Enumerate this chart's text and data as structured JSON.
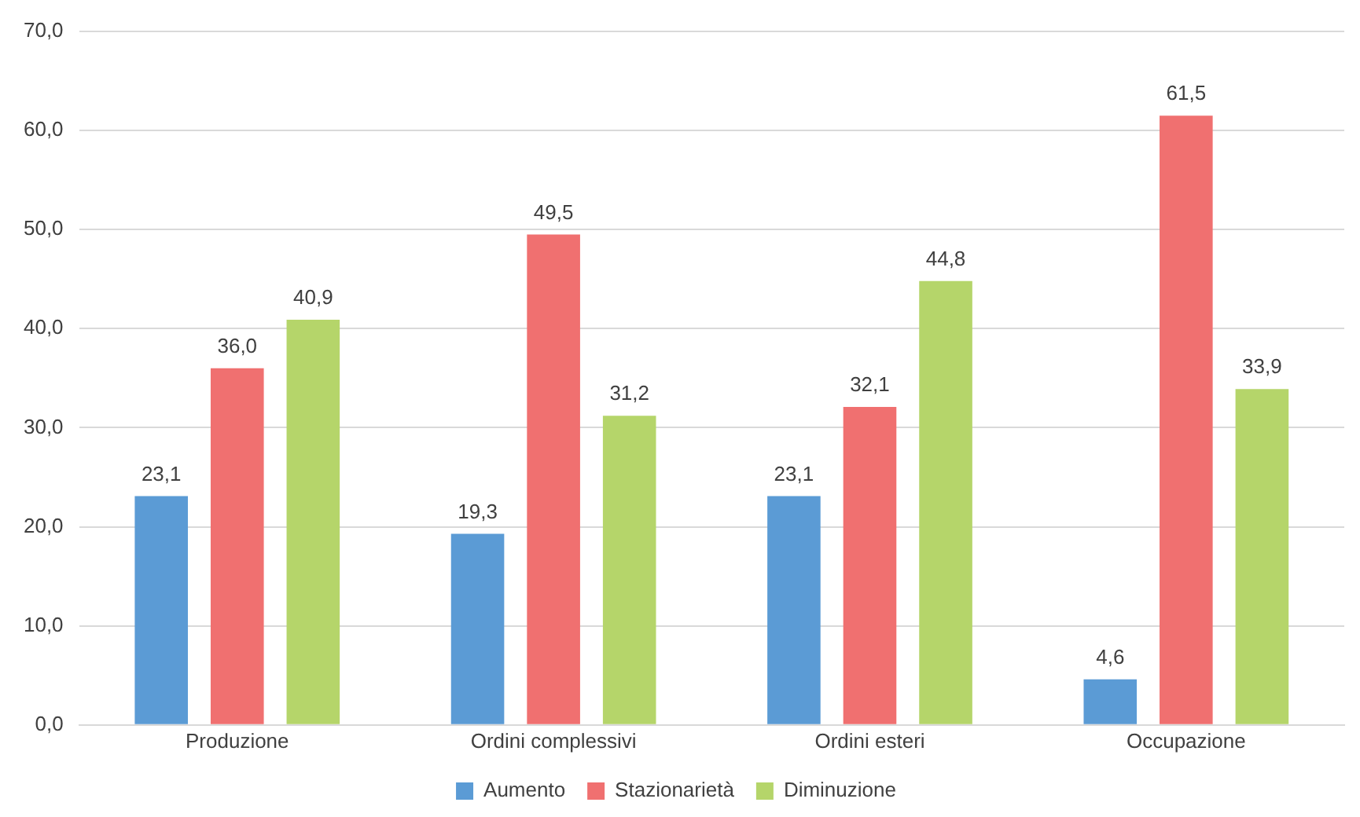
{
  "chart_data": {
    "type": "bar",
    "categories": [
      "Produzione",
      "Ordini complessivi",
      "Ordini esteri",
      "Occupazione"
    ],
    "series": [
      {
        "name": "Aumento",
        "color": "#5b9bd5",
        "values": [
          23.1,
          19.3,
          23.1,
          4.6
        ],
        "value_labels": [
          "23,1",
          "19,3",
          "23,1",
          "4,6"
        ]
      },
      {
        "name": "Stazionarietà",
        "color": "#f07070",
        "values": [
          36.0,
          49.5,
          32.1,
          61.5
        ],
        "value_labels": [
          "36,0",
          "49,5",
          "32,1",
          "61,5"
        ]
      },
      {
        "name": "Diminuzione",
        "color": "#b5d56a",
        "values": [
          40.9,
          31.2,
          44.8,
          33.9
        ],
        "value_labels": [
          "40,9",
          "31,2",
          "44,8",
          "33,9"
        ]
      }
    ],
    "ylim": [
      0,
      70
    ],
    "yticks": [
      {
        "value": 0,
        "label": "0,0"
      },
      {
        "value": 10,
        "label": "10,0"
      },
      {
        "value": 20,
        "label": "20,0"
      },
      {
        "value": 30,
        "label": "30,0"
      },
      {
        "value": 40,
        "label": "40,0"
      },
      {
        "value": 50,
        "label": "50,0"
      },
      {
        "value": 60,
        "label": "60,0"
      },
      {
        "value": 70,
        "label": "70,0"
      }
    ],
    "grid": "y",
    "legend": "bottom"
  }
}
